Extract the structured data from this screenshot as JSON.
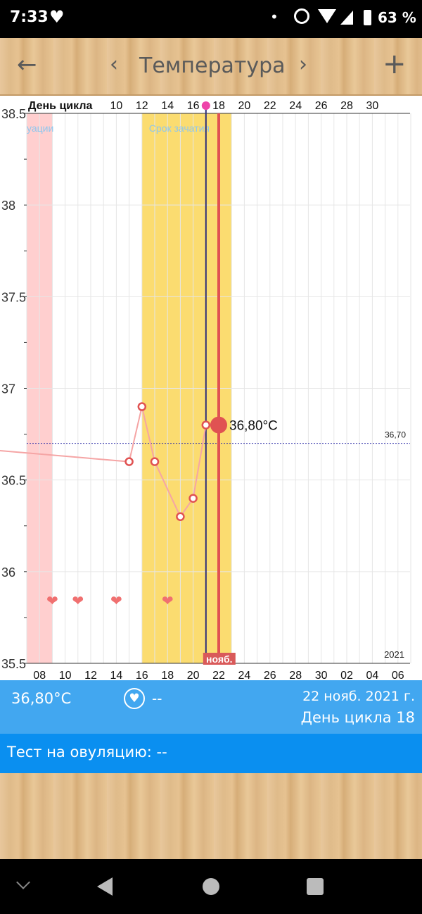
{
  "status_bar": {
    "time": "7:33",
    "battery": "63 %"
  },
  "header": {
    "title": "Температура"
  },
  "chart_data": {
    "type": "line",
    "cycle_day_label": "День цикла",
    "cycle_day_ticks": [
      "10",
      "12",
      "14",
      "16",
      "18",
      "20",
      "22",
      "24",
      "26",
      "28",
      "30"
    ],
    "date_ticks": [
      "08",
      "10",
      "12",
      "14",
      "16",
      "18",
      "20",
      "22",
      "24",
      "26",
      "28",
      "30",
      "02",
      "04",
      "06"
    ],
    "y_ticks": [
      "38.5",
      "38",
      "37.5",
      "37",
      "36.5",
      "36",
      "35.5"
    ],
    "ylim": [
      35.5,
      38.5
    ],
    "x": [
      6,
      15,
      16,
      17,
      19,
      20,
      21,
      22
    ],
    "values": [
      36.66,
      36.6,
      36.9,
      36.6,
      36.3,
      36.4,
      36.8,
      36.8
    ],
    "x_range_dates": [
      7,
      37
    ],
    "coverline": {
      "value": 36.7,
      "label": "36,70"
    },
    "selected": {
      "x": 22,
      "label": "36,80°C"
    },
    "menstruation": {
      "from": 7,
      "to": 9,
      "label": "уации"
    },
    "fertile_window": {
      "from": 16,
      "to": 23,
      "label": "Срок зачатия"
    },
    "ovulation_line_x": 21,
    "heart_markers_x": [
      9,
      11,
      14,
      18
    ],
    "month_label": "нояб.",
    "year_label": "2021",
    "grid": true
  },
  "info": {
    "temp": "36,80°C",
    "sex_value": "--",
    "date": "22 нояб. 2021 г.",
    "cycle_day": "День цикла 18"
  },
  "ovulation_test": {
    "label": "Тест на овуляцию: --"
  },
  "colors": {
    "line": "#f5a5a5",
    "selected_line": "#e05252",
    "ovulation_line": "#2e2e7a",
    "fertile": "#fbdc70",
    "menstruation": "#ffcfcf",
    "info_bg": "#42a7f0",
    "test_bg": "#0a8ff0"
  }
}
